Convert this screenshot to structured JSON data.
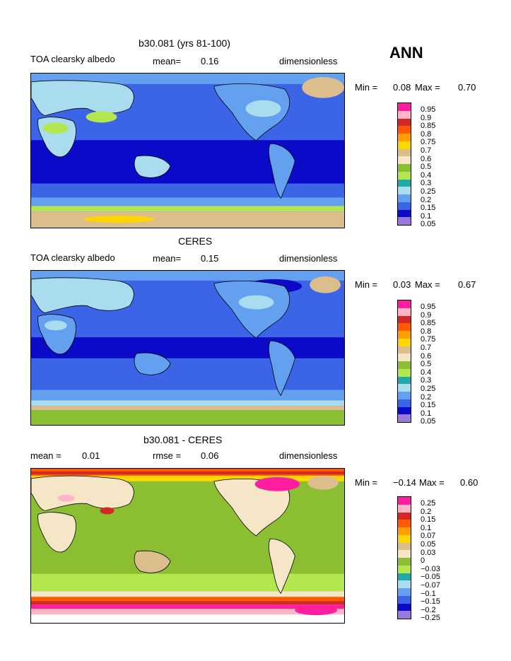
{
  "header": {
    "season": "ANN"
  },
  "panels": [
    {
      "title": "b30.081 (yrs 81-100)",
      "left_label": "TOA clearsky albedo",
      "center_label": "mean=",
      "center_value": "0.16",
      "right_label": "dimensionless",
      "min_label": "Min =",
      "min_value": "0.08",
      "max_label": "Max =",
      "max_value": "0.70",
      "levels": [
        "0.95",
        "0.9",
        "0.85",
        "0.8",
        "0.75",
        "0.7",
        "0.6",
        "0.5",
        "0.4",
        "0.3",
        "0.25",
        "0.2",
        "0.15",
        "0.1",
        "0.05"
      ],
      "colors": [
        "#ff1ea0",
        "#ffb4c8",
        "#d22828",
        "#ff5a00",
        "#ffa000",
        "#ffd700",
        "#dcbe8c",
        "#f5e6c8",
        "#8cbe32",
        "#b4e650",
        "#1eaaaa",
        "#aadcf0",
        "#64a0f0",
        "#3c64e6",
        "#0a0ac8",
        "#9a78dc"
      ]
    },
    {
      "title": "CERES",
      "left_label": "TOA clearsky albedo",
      "center_label": "mean=",
      "center_value": "0.15",
      "right_label": "dimensionless",
      "min_label": "Min =",
      "min_value": "0.03",
      "max_label": "Max =",
      "max_value": "0.67",
      "levels": [
        "0.95",
        "0.9",
        "0.85",
        "0.8",
        "0.75",
        "0.7",
        "0.6",
        "0.5",
        "0.4",
        "0.3",
        "0.25",
        "0.2",
        "0.15",
        "0.1",
        "0.05"
      ],
      "colors": [
        "#ff1ea0",
        "#ffb4c8",
        "#d22828",
        "#ff5a00",
        "#ffa000",
        "#ffd700",
        "#dcbe8c",
        "#f5e6c8",
        "#8cbe32",
        "#b4e650",
        "#1eaaaa",
        "#aadcf0",
        "#64a0f0",
        "#3c64e6",
        "#0a0ac8",
        "#9a78dc"
      ]
    },
    {
      "title": "b30.081 - CERES",
      "left_label": "mean =",
      "left_value": "0.01",
      "center_label": "rmse =",
      "center_value": "0.06",
      "right_label": "dimensionless",
      "min_label": "Min =",
      "min_value": "−0.14",
      "max_label": "Max =",
      "max_value": "0.60",
      "levels": [
        "0.25",
        "0.2",
        "0.15",
        "0.1",
        "0.07",
        "0.05",
        "0.03",
        "0",
        "−0.03",
        "−0.05",
        "−0.07",
        "−0.1",
        "−0.15",
        "−0.2",
        "−0.25"
      ],
      "colors": [
        "#ff1ea0",
        "#ffb4c8",
        "#d22828",
        "#ff5a00",
        "#ffa000",
        "#ffd700",
        "#dcbe8c",
        "#f5e6c8",
        "#8cbe32",
        "#b4e650",
        "#1eaaaa",
        "#aadcf0",
        "#64a0f0",
        "#3c64e6",
        "#0a0ac8",
        "#9a78dc"
      ]
    }
  ]
}
